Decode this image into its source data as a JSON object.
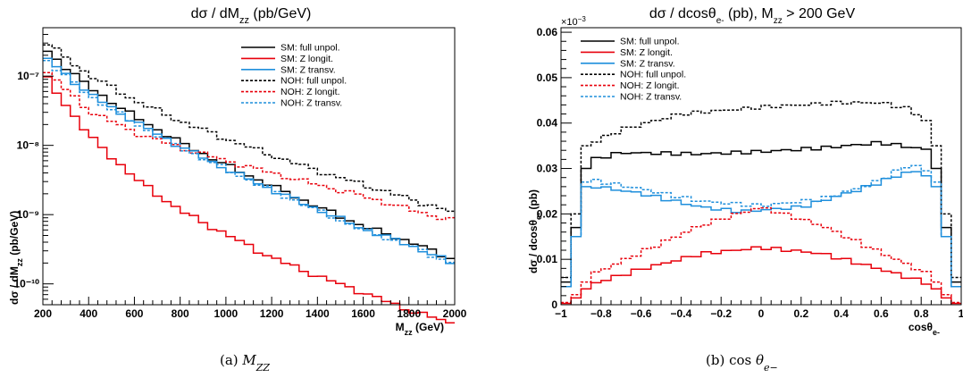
{
  "chart_data": [
    {
      "type": "line",
      "title": "dσ / dM_zz  (pb/GeV)",
      "xlabel": "M_zz (GeV)",
      "ylabel": "dσ / dM_zz (pb/GeV)",
      "xlim": [
        200,
        2000
      ],
      "ylim": [
        5e-11,
        5e-07
      ],
      "yscale": "log",
      "x_ticks": [
        "200",
        "400",
        "600",
        "800",
        "1000",
        "1200",
        "1400",
        "1600",
        "1800",
        "2000"
      ],
      "y_ticks": [
        "10⁻¹⁰",
        "10⁻⁹",
        "10⁻⁸",
        "10⁻⁷"
      ],
      "legend_position": "top-right",
      "caption": "(a)  M_ZZ",
      "x_nodes": [
        200,
        400,
        600,
        800,
        1000,
        1200,
        1400,
        1600,
        1800,
        2000
      ],
      "series": [
        {
          "name": "SM: full unpol.",
          "color": "#000000",
          "dashed": false,
          "nodes": [
            2.6e-07,
            7e-08,
            2.6e-08,
            1.1e-08,
            5.2e-09,
            2.6e-09,
            1.3e-09,
            6.8e-10,
            4.1e-10,
            2.2e-10
          ]
        },
        {
          "name": "SM: Z longit.",
          "color": "#e8000b",
          "dashed": false,
          "nodes": [
            1.1e-07,
            1.4e-08,
            3.4e-09,
            1.15e-09,
            5.2e-10,
            2.4e-10,
            1.3e-10,
            7.5e-11,
            4.2e-11,
            2.6e-11
          ]
        },
        {
          "name": "SM: Z transv.",
          "color": "#1f8fdc",
          "dashed": false,
          "nodes": [
            2e-07,
            5.6e-08,
            2.2e-08,
            9.7e-09,
            4.6e-09,
            2.3e-09,
            1.2e-09,
            6.2e-10,
            3.7e-10,
            1.9e-10
          ]
        },
        {
          "name": "NOH: full unpol.",
          "color": "#000000",
          "dashed": true,
          "nodes": [
            3.3e-07,
            1.05e-07,
            4.5e-08,
            2.25e-08,
            1.25e-08,
            7.2e-09,
            4.3e-09,
            2.7e-09,
            1.7e-09,
            1.05e-09
          ]
        },
        {
          "name": "NOH: Z longit.",
          "color": "#e8000b",
          "dashed": true,
          "nodes": [
            1.3e-07,
            3.2e-08,
            1.55e-08,
            9.3e-09,
            6e-09,
            4e-09,
            2.7e-09,
            1.85e-09,
            1.2e-09,
            8e-10
          ]
        },
        {
          "name": "NOH: Z transv.",
          "color": "#1f8fdc",
          "dashed": true,
          "nodes": [
            1.9e-07,
            5.3e-08,
            2.1e-08,
            9.4e-09,
            4.5e-09,
            2.25e-09,
            1.15e-09,
            6e-10,
            3.6e-10,
            1.9e-10
          ]
        }
      ]
    },
    {
      "type": "line",
      "title": "dσ / dcosθ_e- (pb), M_zz > 200 GeV",
      "xlabel": "cosθ_e-",
      "ylabel": "dσ / dcosθ_e- (pb)",
      "xlim": [
        -1,
        1
      ],
      "ylim": [
        0,
        0.061
      ],
      "y_multiplier": "×10⁻³",
      "x_ticks": [
        "−1",
        "−0.8",
        "−0.6",
        "−0.4",
        "−0.2",
        "0",
        "0.2",
        "0.4",
        "0.6",
        "0.8",
        "1"
      ],
      "y_ticks": [
        "0",
        "0.01",
        "0.02",
        "0.03",
        "0.04",
        "0.05",
        "0.06"
      ],
      "legend_position": "top-left",
      "caption": "(b)  cos θ_e−",
      "series": [
        {
          "name": "SM: full unpol.",
          "color": "#000000",
          "dashed": false,
          "edge": [
            0.005,
            0.017,
            0.03
          ],
          "plateau": [
            [
              -0.85,
              0.0318
            ],
            [
              -0.7,
              0.0335
            ],
            [
              -0.3,
              0.0332
            ],
            [
              0.0,
              0.0337
            ],
            [
              0.3,
              0.0345
            ],
            [
              0.6,
              0.0357
            ],
            [
              0.85,
              0.034
            ]
          ]
        },
        {
          "name": "SM: Z longit.",
          "color": "#e8000b",
          "dashed": false,
          "edge": [
            0.0003,
            0.0015,
            0.0035
          ],
          "plateau": [
            [
              -0.85,
              0.0045
            ],
            [
              -0.6,
              0.0078
            ],
            [
              -0.3,
              0.0112
            ],
            [
              0.0,
              0.0126
            ],
            [
              0.3,
              0.0113
            ],
            [
              0.6,
              0.0078
            ],
            [
              0.85,
              0.0045
            ]
          ]
        },
        {
          "name": "SM: Z transv.",
          "color": "#1f8fdc",
          "dashed": false,
          "edge": [
            0.004,
            0.015,
            0.026
          ],
          "plateau": [
            [
              -0.85,
              0.0262
            ],
            [
              -0.6,
              0.0245
            ],
            [
              -0.3,
              0.0215
            ],
            [
              -0.1,
              0.0205
            ],
            [
              0.2,
              0.0215
            ],
            [
              0.5,
              0.0255
            ],
            [
              0.75,
              0.0295
            ],
            [
              0.85,
              0.0283
            ]
          ]
        },
        {
          "name": "NOH: full unpol.",
          "color": "#000000",
          "dashed": true,
          "edge": [
            0.006,
            0.02,
            0.035
          ],
          "plateau": [
            [
              -0.85,
              0.0355
            ],
            [
              -0.7,
              0.0385
            ],
            [
              -0.4,
              0.042
            ],
            [
              0.0,
              0.0435
            ],
            [
              0.4,
              0.0445
            ],
            [
              0.6,
              0.0445
            ],
            [
              0.75,
              0.043
            ],
            [
              0.85,
              0.0395
            ]
          ]
        },
        {
          "name": "NOH: Z longit.",
          "color": "#e8000b",
          "dashed": true,
          "edge": [
            0.0005,
            0.0022,
            0.005
          ],
          "plateau": [
            [
              -0.85,
              0.0065
            ],
            [
              -0.6,
              0.0115
            ],
            [
              -0.3,
              0.0175
            ],
            [
              0.0,
              0.0215
            ],
            [
              0.3,
              0.0175
            ],
            [
              0.6,
              0.0115
            ],
            [
              0.85,
              0.0065
            ]
          ]
        },
        {
          "name": "NOH: Z transv.",
          "color": "#1f8fdc",
          "dashed": true,
          "edge": [
            0.004,
            0.015,
            0.027
          ],
          "plateau": [
            [
              -0.85,
              0.0275
            ],
            [
              -0.6,
              0.0255
            ],
            [
              -0.3,
              0.0228
            ],
            [
              0.0,
              0.0218
            ],
            [
              0.3,
              0.0232
            ],
            [
              0.55,
              0.0265
            ],
            [
              0.75,
              0.031
            ],
            [
              0.85,
              0.029
            ]
          ]
        }
      ]
    }
  ]
}
